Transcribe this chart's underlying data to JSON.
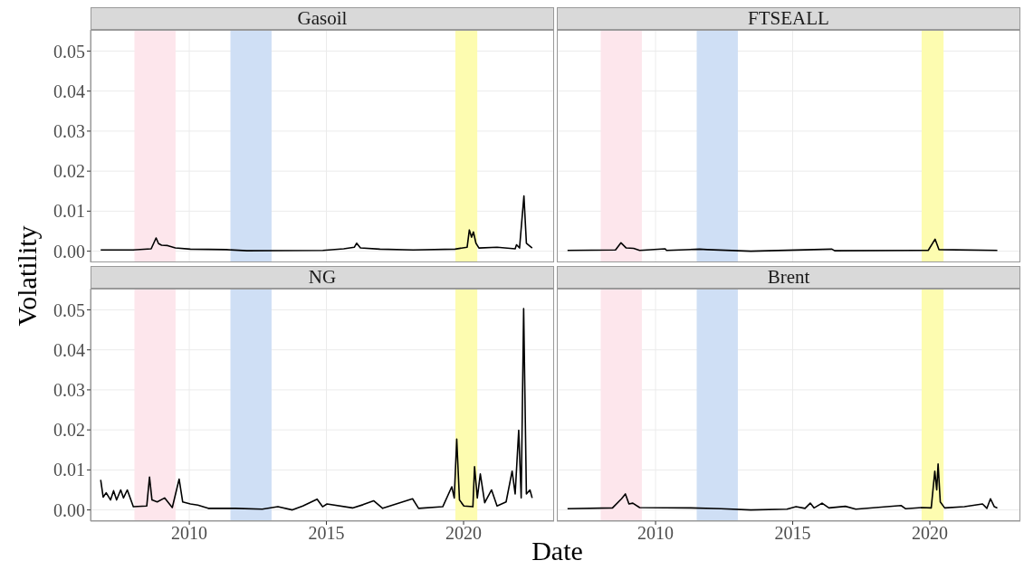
{
  "chart_data": [
    {
      "type": "line",
      "title": "Gasoil",
      "color": "#000000",
      "tick_labels": "y",
      "grid": true,
      "xlim": [
        2006.4,
        2023.3
      ],
      "xticks": [
        2010,
        2015,
        2020
      ],
      "ylim": [
        -0.0028,
        0.0553
      ],
      "yticks": [
        {
          "value": 0,
          "label": "0.00"
        },
        0.01,
        0.02,
        0.03,
        0.04,
        0.05
      ],
      "bands": [
        {
          "axis": "x",
          "from": 2008.0,
          "to": 2009.5,
          "color": "#fde6ec"
        },
        {
          "axis": "x",
          "from": 2011.5,
          "to": 2013.0,
          "color": "#cfdff5"
        },
        {
          "axis": "x",
          "from": 2019.7,
          "to": 2020.5,
          "color": "#fdfcb0"
        }
      ],
      "x": [
        2006.77,
        2007.95,
        2008.61,
        2008.79,
        2008.88,
        2008.99,
        2009.21,
        2009.49,
        2010.04,
        2011.35,
        2012.1,
        2014.87,
        2015.63,
        2016.02,
        2016.1,
        2016.24,
        2016.95,
        2018.16,
        2019.69,
        2020.13,
        2020.21,
        2020.29,
        2020.36,
        2020.45,
        2020.56,
        2021.22,
        2021.88,
        2021.93,
        2022.04,
        2022.2,
        2022.29,
        2022.5
      ],
      "values": [
        0.0003,
        0.0003,
        0.0006,
        0.0033,
        0.0019,
        0.0015,
        0.0014,
        0.0008,
        0.0005,
        0.0004,
        0.0001,
        0.0002,
        0.0006,
        0.001,
        0.002,
        0.0008,
        0.0005,
        0.0003,
        0.0005,
        0.001,
        0.0053,
        0.0035,
        0.0048,
        0.002,
        0.0008,
        0.001,
        0.0006,
        0.0016,
        0.0008,
        0.0138,
        0.002,
        0.0008
      ]
    },
    {
      "type": "line",
      "title": "FTSEALL",
      "color": "#000000",
      "tick_labels": false,
      "grid": true,
      "xlim": [
        2006.4,
        2023.3
      ],
      "xticks": [
        2010,
        2015,
        2020
      ],
      "ylim": [
        -0.0028,
        0.0553
      ],
      "yticks": [
        0,
        0.01,
        0.02,
        0.03,
        0.04,
        0.05
      ],
      "bands": [
        {
          "axis": "x",
          "from": 2008.0,
          "to": 2009.5,
          "color": "#fde6ec"
        },
        {
          "axis": "x",
          "from": 2011.5,
          "to": 2013.0,
          "color": "#cfdff5"
        },
        {
          "axis": "x",
          "from": 2019.7,
          "to": 2020.5,
          "color": "#fdfcb0"
        }
      ],
      "x": [
        2006.79,
        2008.54,
        2008.74,
        2008.93,
        2009.2,
        2009.42,
        2010.35,
        2010.4,
        2011.6,
        2011.88,
        2013.47,
        2016.43,
        2016.53,
        2019.94,
        2020.19,
        2020.33,
        2022.46
      ],
      "values": [
        0.0002,
        0.0003,
        0.0021,
        0.0008,
        0.0007,
        0.0002,
        0.0006,
        0.0002,
        0.0005,
        0.0004,
        0.0,
        0.0005,
        0.0001,
        0.0002,
        0.003,
        0.0004,
        0.0002
      ]
    },
    {
      "type": "line",
      "title": "NG",
      "xlabel": "Date",
      "ylabel": "Volatility",
      "color": "#000000",
      "grid": true,
      "xlim": [
        2006.4,
        2023.3
      ],
      "xticks": [
        2010,
        2015,
        2020
      ],
      "ylim": [
        -0.0028,
        0.0553
      ],
      "yticks": [
        {
          "value": 0,
          "label": "0.00"
        },
        0.01,
        0.02,
        0.03,
        0.04,
        0.05
      ],
      "bands": [
        {
          "axis": "x",
          "from": 2008.0,
          "to": 2009.5,
          "color": "#fde6ec"
        },
        {
          "axis": "x",
          "from": 2011.5,
          "to": 2013.0,
          "color": "#cfdff5"
        },
        {
          "axis": "x",
          "from": 2019.7,
          "to": 2020.5,
          "color": "#fdfcb0"
        }
      ],
      "x": [
        2006.77,
        2006.86,
        2006.97,
        2007.13,
        2007.24,
        2007.35,
        2007.5,
        2007.6,
        2007.74,
        2007.96,
        2008.45,
        2008.55,
        2008.64,
        2008.83,
        2009.1,
        2009.38,
        2009.63,
        2009.76,
        2010.04,
        2010.31,
        2010.69,
        2011.68,
        2012.66,
        2013.23,
        2013.76,
        2014.14,
        2014.66,
        2014.86,
        2015.02,
        2015.95,
        2016.33,
        2016.72,
        2017.05,
        2018.14,
        2018.36,
        2019.24,
        2019.57,
        2019.66,
        2019.75,
        2019.85,
        2020.01,
        2020.34,
        2020.4,
        2020.5,
        2020.61,
        2020.77,
        2021.02,
        2021.22,
        2021.55,
        2021.77,
        2021.88,
        2022.01,
        2022.1,
        2022.19,
        2022.29,
        2022.42,
        2022.5
      ],
      "values": [
        0.0075,
        0.0032,
        0.0043,
        0.0025,
        0.0048,
        0.0025,
        0.005,
        0.003,
        0.005,
        0.0008,
        0.001,
        0.0082,
        0.0025,
        0.002,
        0.003,
        0.0006,
        0.0077,
        0.002,
        0.0015,
        0.0012,
        0.0004,
        0.0004,
        0.0002,
        0.0008,
        0.0,
        0.001,
        0.0027,
        0.0008,
        0.0015,
        0.0005,
        0.0013,
        0.0023,
        0.0004,
        0.0028,
        0.0004,
        0.0008,
        0.0058,
        0.003,
        0.0177,
        0.0025,
        0.001,
        0.0008,
        0.0108,
        0.003,
        0.009,
        0.0018,
        0.005,
        0.001,
        0.002,
        0.0097,
        0.004,
        0.0199,
        0.003,
        0.0503,
        0.004,
        0.005,
        0.003
      ]
    },
    {
      "type": "line",
      "title": "Brent",
      "color": "#000000",
      "tick_labels": "x",
      "grid": true,
      "xlim": [
        2006.4,
        2023.3
      ],
      "xticks": [
        2010,
        2015,
        2020
      ],
      "ylim": [
        -0.0028,
        0.0553
      ],
      "yticks": [
        0,
        0.01,
        0.02,
        0.03,
        0.04,
        0.05
      ],
      "bands": [
        {
          "axis": "x",
          "from": 2008.0,
          "to": 2009.5,
          "color": "#fde6ec"
        },
        {
          "axis": "x",
          "from": 2011.5,
          "to": 2013.0,
          "color": "#cfdff5"
        },
        {
          "axis": "x",
          "from": 2019.7,
          "to": 2020.5,
          "color": "#fdfcb0"
        }
      ],
      "x": [
        2006.79,
        2008.43,
        2008.76,
        2008.9,
        2009.03,
        2009.17,
        2009.42,
        2011.28,
        2012.38,
        2013.47,
        2014.79,
        2015.12,
        2015.45,
        2015.64,
        2015.78,
        2016.07,
        2016.32,
        2016.92,
        2017.3,
        2018.95,
        2019.12,
        2019.72,
        2020.05,
        2020.18,
        2020.25,
        2020.3,
        2020.38,
        2020.54,
        2021.26,
        2021.92,
        2022.08,
        2022.21,
        2022.35,
        2022.46
      ],
      "values": [
        0.0003,
        0.0005,
        0.0028,
        0.004,
        0.0015,
        0.0017,
        0.0006,
        0.0005,
        0.0003,
        0.0,
        0.0002,
        0.0008,
        0.0004,
        0.0017,
        0.0005,
        0.0017,
        0.0005,
        0.0009,
        0.0002,
        0.0011,
        0.0003,
        0.0006,
        0.0005,
        0.0097,
        0.005,
        0.0115,
        0.002,
        0.0005,
        0.0008,
        0.0015,
        0.0004,
        0.0028,
        0.0008,
        0.0005
      ]
    }
  ]
}
